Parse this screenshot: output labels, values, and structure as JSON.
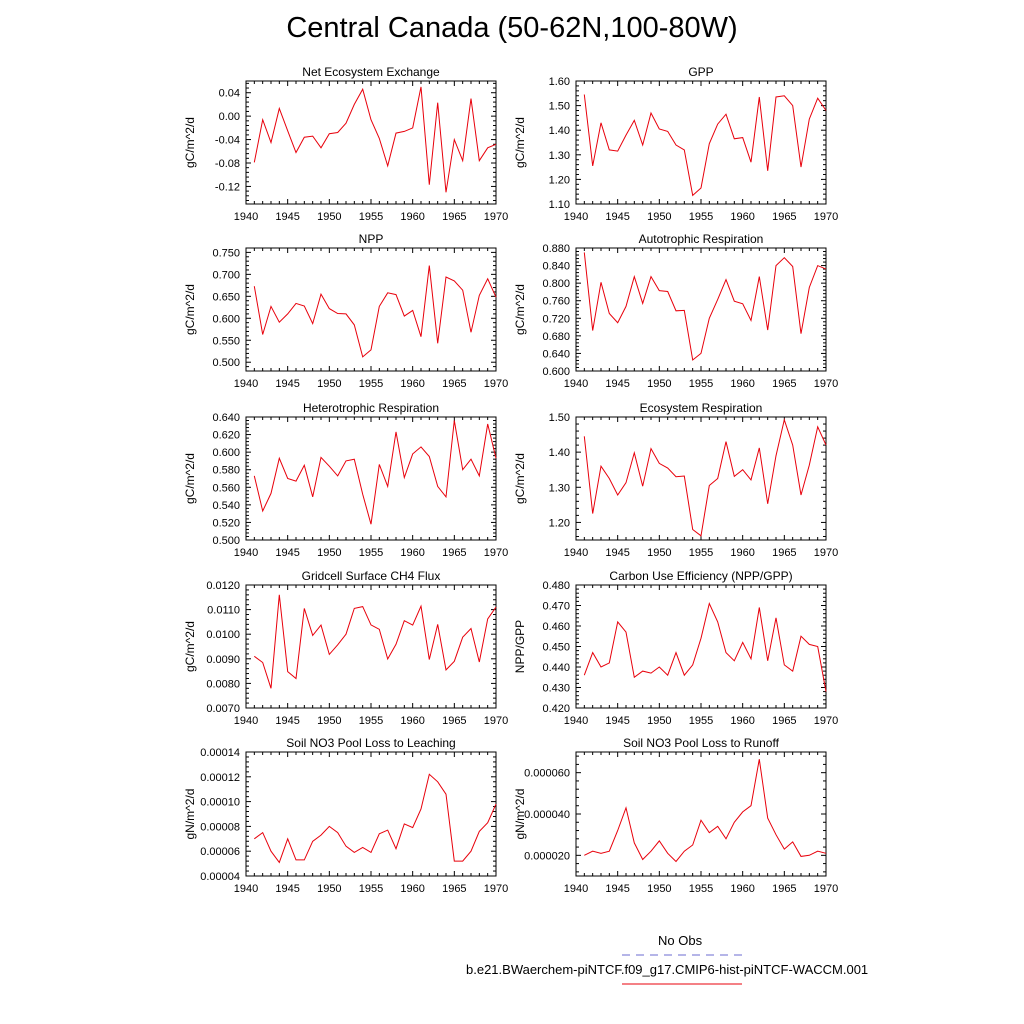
{
  "title": "Central Canada (50-62N,100-80W)",
  "legend": {
    "obs_label": "No Obs",
    "obs_color": "#6b6bd0",
    "model_label": "b.e21.BWaerchem-piNTCF.f09_g17.CMIP6-hist-piNTCF-WACCM.001",
    "model_color": "#e8000b"
  },
  "chart_data": [
    {
      "type": "line",
      "title": "Net Ecosystem Exchange",
      "ylabel": "gC/m^2/d",
      "xlim": [
        1940,
        1970
      ],
      "ylim": [
        -0.15,
        0.06
      ],
      "xticks": [
        1940,
        1945,
        1950,
        1955,
        1960,
        1965,
        1970
      ],
      "yticks": [
        0.04,
        0.0,
        -0.04,
        -0.08,
        -0.12
      ],
      "ytick_labels": [
        "0.04",
        "0.00",
        "-0.04",
        "-0.08",
        "-0.12"
      ],
      "x": [
        1941,
        1942,
        1943,
        1944,
        1945,
        1946,
        1947,
        1948,
        1949,
        1950,
        1951,
        1952,
        1953,
        1954,
        1955,
        1956,
        1957,
        1958,
        1959,
        1960,
        1961,
        1962,
        1963,
        1964,
        1965,
        1966,
        1967,
        1968,
        1969,
        1970
      ],
      "series": [
        {
          "values": [
            -0.079,
            -0.006,
            -0.045,
            0.013,
            -0.025,
            -0.062,
            -0.036,
            -0.034,
            -0.054,
            -0.03,
            -0.028,
            -0.012,
            0.02,
            0.046,
            -0.006,
            -0.038,
            -0.085,
            -0.029,
            -0.026,
            -0.02,
            0.05,
            -0.117,
            0.023,
            -0.13,
            -0.04,
            -0.076,
            0.03,
            -0.076,
            -0.054,
            -0.048
          ],
          "color": "#e8000b"
        }
      ]
    },
    {
      "type": "line",
      "title": "GPP",
      "ylabel": "gC/m^2/d",
      "xlim": [
        1940,
        1970
      ],
      "ylim": [
        1.1,
        1.6
      ],
      "xticks": [
        1940,
        1945,
        1950,
        1955,
        1960,
        1965,
        1970
      ],
      "yticks": [
        1.1,
        1.2,
        1.3,
        1.4,
        1.5,
        1.6
      ],
      "ytick_labels": [
        "1.10",
        "1.20",
        "1.30",
        "1.40",
        "1.50",
        "1.60"
      ],
      "x": [
        1941,
        1942,
        1943,
        1944,
        1945,
        1946,
        1947,
        1948,
        1949,
        1950,
        1951,
        1952,
        1953,
        1954,
        1955,
        1956,
        1957,
        1958,
        1959,
        1960,
        1961,
        1962,
        1963,
        1964,
        1965,
        1966,
        1967,
        1968,
        1969,
        1970
      ],
      "series": [
        {
          "values": [
            1.545,
            1.255,
            1.43,
            1.32,
            1.315,
            1.38,
            1.44,
            1.34,
            1.47,
            1.405,
            1.395,
            1.34,
            1.32,
            1.135,
            1.165,
            1.345,
            1.425,
            1.465,
            1.365,
            1.37,
            1.27,
            1.535,
            1.235,
            1.535,
            1.54,
            1.5,
            1.25,
            1.445,
            1.53,
            1.48
          ],
          "color": "#e8000b"
        }
      ]
    },
    {
      "type": "line",
      "title": "NPP",
      "ylabel": "gC/m^2/d",
      "xlim": [
        1940,
        1970
      ],
      "ylim": [
        0.48,
        0.76
      ],
      "xticks": [
        1940,
        1945,
        1950,
        1955,
        1960,
        1965,
        1970
      ],
      "yticks": [
        0.5,
        0.55,
        0.6,
        0.65,
        0.7,
        0.75
      ],
      "ytick_labels": [
        "0.500",
        "0.550",
        "0.600",
        "0.650",
        "0.700",
        "0.750"
      ],
      "x": [
        1941,
        1942,
        1943,
        1944,
        1945,
        1946,
        1947,
        1948,
        1949,
        1950,
        1951,
        1952,
        1953,
        1954,
        1955,
        1956,
        1957,
        1958,
        1959,
        1960,
        1961,
        1962,
        1963,
        1964,
        1965,
        1966,
        1967,
        1968,
        1969,
        1970
      ],
      "series": [
        {
          "values": [
            0.673,
            0.563,
            0.627,
            0.591,
            0.61,
            0.634,
            0.628,
            0.588,
            0.655,
            0.622,
            0.611,
            0.61,
            0.585,
            0.512,
            0.528,
            0.627,
            0.658,
            0.654,
            0.605,
            0.618,
            0.558,
            0.72,
            0.543,
            0.694,
            0.685,
            0.664,
            0.568,
            0.652,
            0.69,
            0.648
          ],
          "color": "#e8000b"
        }
      ]
    },
    {
      "type": "line",
      "title": "Autotrophic Respiration",
      "ylabel": "gC/m^2/d",
      "xlim": [
        1940,
        1970
      ],
      "ylim": [
        0.6,
        0.88
      ],
      "xticks": [
        1940,
        1945,
        1950,
        1955,
        1960,
        1965,
        1970
      ],
      "yticks": [
        0.6,
        0.64,
        0.68,
        0.72,
        0.76,
        0.8,
        0.84,
        0.88
      ],
      "ytick_labels": [
        "0.600",
        "0.640",
        "0.680",
        "0.720",
        "0.760",
        "0.800",
        "0.840",
        "0.880"
      ],
      "x": [
        1941,
        1942,
        1943,
        1944,
        1945,
        1946,
        1947,
        1948,
        1949,
        1950,
        1951,
        1952,
        1953,
        1954,
        1955,
        1956,
        1957,
        1958,
        1959,
        1960,
        1961,
        1962,
        1963,
        1964,
        1965,
        1966,
        1967,
        1968,
        1969,
        1970
      ],
      "series": [
        {
          "values": [
            0.87,
            0.692,
            0.802,
            0.731,
            0.71,
            0.747,
            0.815,
            0.754,
            0.815,
            0.783,
            0.781,
            0.737,
            0.738,
            0.625,
            0.64,
            0.72,
            0.763,
            0.808,
            0.759,
            0.753,
            0.715,
            0.815,
            0.693,
            0.84,
            0.858,
            0.838,
            0.685,
            0.79,
            0.84,
            0.832
          ],
          "color": "#e8000b"
        }
      ]
    },
    {
      "type": "line",
      "title": "Heterotrophic Respiration",
      "ylabel": "gC/m^2/d",
      "xlim": [
        1940,
        1970
      ],
      "ylim": [
        0.5,
        0.64
      ],
      "xticks": [
        1940,
        1945,
        1950,
        1955,
        1960,
        1965,
        1970
      ],
      "yticks": [
        0.5,
        0.52,
        0.54,
        0.56,
        0.58,
        0.6,
        0.62,
        0.64
      ],
      "ytick_labels": [
        "0.500",
        "0.520",
        "0.540",
        "0.560",
        "0.580",
        "0.600",
        "0.620",
        "0.640"
      ],
      "x": [
        1941,
        1942,
        1943,
        1944,
        1945,
        1946,
        1947,
        1948,
        1949,
        1950,
        1951,
        1952,
        1953,
        1954,
        1955,
        1956,
        1957,
        1958,
        1959,
        1960,
        1961,
        1962,
        1963,
        1964,
        1965,
        1966,
        1967,
        1968,
        1969,
        1970
      ],
      "series": [
        {
          "values": [
            0.573,
            0.533,
            0.553,
            0.593,
            0.57,
            0.567,
            0.585,
            0.549,
            0.594,
            0.584,
            0.573,
            0.59,
            0.592,
            0.552,
            0.518,
            0.586,
            0.561,
            0.623,
            0.571,
            0.598,
            0.606,
            0.595,
            0.561,
            0.549,
            0.636,
            0.58,
            0.592,
            0.573,
            0.632,
            0.593
          ],
          "color": "#e8000b"
        }
      ]
    },
    {
      "type": "line",
      "title": "Ecosystem Respiration",
      "ylabel": "gC/m^2/d",
      "xlim": [
        1940,
        1970
      ],
      "ylim": [
        1.15,
        1.5
      ],
      "xticks": [
        1940,
        1945,
        1950,
        1955,
        1960,
        1965,
        1970
      ],
      "yticks": [
        1.2,
        1.3,
        1.4,
        1.5
      ],
      "ytick_labels": [
        "1.20",
        "1.30",
        "1.40",
        "1.50"
      ],
      "x": [
        1941,
        1942,
        1943,
        1944,
        1945,
        1946,
        1947,
        1948,
        1949,
        1950,
        1951,
        1952,
        1953,
        1954,
        1955,
        1956,
        1957,
        1958,
        1959,
        1960,
        1961,
        1962,
        1963,
        1964,
        1965,
        1966,
        1967,
        1968,
        1969,
        1970
      ],
      "series": [
        {
          "values": [
            1.445,
            1.225,
            1.36,
            1.325,
            1.278,
            1.313,
            1.398,
            1.303,
            1.41,
            1.368,
            1.355,
            1.33,
            1.332,
            1.18,
            1.162,
            1.305,
            1.325,
            1.43,
            1.331,
            1.35,
            1.321,
            1.412,
            1.253,
            1.39,
            1.492,
            1.42,
            1.278,
            1.363,
            1.472,
            1.42
          ],
          "color": "#e8000b"
        }
      ]
    },
    {
      "type": "line",
      "title": "Gridcell Surface CH4 Flux",
      "ylabel": "gC/m^2/d",
      "xlim": [
        1940,
        1970
      ],
      "ylim": [
        0.007,
        0.012
      ],
      "xticks": [
        1940,
        1945,
        1950,
        1955,
        1960,
        1965,
        1970
      ],
      "yticks": [
        0.007,
        0.008,
        0.009,
        0.01,
        0.011,
        0.012
      ],
      "ytick_labels": [
        "0.0070",
        "0.0080",
        "0.0090",
        "0.0100",
        "0.0110",
        "0.0120"
      ],
      "x": [
        1941,
        1942,
        1943,
        1944,
        1945,
        1946,
        1947,
        1948,
        1949,
        1950,
        1951,
        1952,
        1953,
        1954,
        1955,
        1956,
        1957,
        1958,
        1959,
        1960,
        1961,
        1962,
        1963,
        1964,
        1965,
        1966,
        1967,
        1968,
        1969,
        1970
      ],
      "series": [
        {
          "values": [
            0.0091,
            0.00885,
            0.0078,
            0.0116,
            0.00848,
            0.0082,
            0.01105,
            0.00995,
            0.01037,
            0.00918,
            0.00957,
            0.01,
            0.01105,
            0.01112,
            0.01038,
            0.0102,
            0.00899,
            0.00959,
            0.01055,
            0.01037,
            0.01114,
            0.00897,
            0.0104,
            0.00855,
            0.0089,
            0.00988,
            0.01023,
            0.00887,
            0.01062,
            0.0111
          ],
          "color": "#e8000b"
        }
      ]
    },
    {
      "type": "line",
      "title": "Carbon Use Efficiency (NPP/GPP)",
      "ylabel": "NPP/GPP",
      "xlim": [
        1940,
        1970
      ],
      "ylim": [
        0.42,
        0.48
      ],
      "xticks": [
        1940,
        1945,
        1950,
        1955,
        1960,
        1965,
        1970
      ],
      "yticks": [
        0.42,
        0.43,
        0.44,
        0.45,
        0.46,
        0.47,
        0.48
      ],
      "ytick_labels": [
        "0.420",
        "0.430",
        "0.440",
        "0.450",
        "0.460",
        "0.470",
        "0.480"
      ],
      "x": [
        1941,
        1942,
        1943,
        1944,
        1945,
        1946,
        1947,
        1948,
        1949,
        1950,
        1951,
        1952,
        1953,
        1954,
        1955,
        1956,
        1957,
        1958,
        1959,
        1960,
        1961,
        1962,
        1963,
        1964,
        1965,
        1966,
        1967,
        1968,
        1969,
        1970
      ],
      "series": [
        {
          "values": [
            0.436,
            0.447,
            0.44,
            0.442,
            0.462,
            0.457,
            0.435,
            0.438,
            0.437,
            0.44,
            0.436,
            0.447,
            0.436,
            0.441,
            0.454,
            0.471,
            0.462,
            0.447,
            0.443,
            0.452,
            0.444,
            0.469,
            0.443,
            0.464,
            0.441,
            0.438,
            0.455,
            0.451,
            0.45,
            0.428
          ],
          "color": "#e8000b"
        }
      ]
    },
    {
      "type": "line",
      "title": "Soil NO3 Pool Loss to Leaching",
      "ylabel": "gN/m^2/d",
      "xlim": [
        1940,
        1970
      ],
      "ylim": [
        4e-05,
        0.00014
      ],
      "xticks": [
        1940,
        1945,
        1950,
        1955,
        1960,
        1965,
        1970
      ],
      "yticks": [
        4e-05,
        6e-05,
        8e-05,
        0.0001,
        0.00012,
        0.00014
      ],
      "ytick_labels": [
        "0.00004",
        "0.00006",
        "0.00008",
        "0.00010",
        "0.00012",
        "0.00014"
      ],
      "x": [
        1941,
        1942,
        1943,
        1944,
        1945,
        1946,
        1947,
        1948,
        1949,
        1950,
        1951,
        1952,
        1953,
        1954,
        1955,
        1956,
        1957,
        1958,
        1959,
        1960,
        1961,
        1962,
        1963,
        1964,
        1965,
        1966,
        1967,
        1968,
        1969,
        1970
      ],
      "series": [
        {
          "values": [
            7e-05,
            7.5e-05,
            6e-05,
            5.1e-05,
            7e-05,
            5.3e-05,
            5.3e-05,
            6.8e-05,
            7.3e-05,
            8e-05,
            7.5e-05,
            6.4e-05,
            5.9e-05,
            6.3e-05,
            5.9e-05,
            7.4e-05,
            7.7e-05,
            6.2e-05,
            8.2e-05,
            7.9e-05,
            9.4e-05,
            0.000122,
            0.000116,
            0.000106,
            5.2e-05,
            5.2e-05,
            6e-05,
            7.6e-05,
            8.3e-05,
            9.8e-05
          ],
          "color": "#e8000b"
        }
      ]
    },
    {
      "type": "line",
      "title": "Soil NO3 Pool Loss to Runoff",
      "ylabel": "gN/m^2/d",
      "xlim": [
        1940,
        1970
      ],
      "ylim": [
        1e-05,
        7e-05
      ],
      "xticks": [
        1940,
        1945,
        1950,
        1955,
        1960,
        1965,
        1970
      ],
      "yticks": [
        2e-05,
        4e-05,
        6e-05
      ],
      "ytick_labels": [
        "0.000020",
        "0.000040",
        "0.000060"
      ],
      "x": [
        1941,
        1942,
        1943,
        1944,
        1945,
        1946,
        1947,
        1948,
        1949,
        1950,
        1951,
        1952,
        1953,
        1954,
        1955,
        1956,
        1957,
        1958,
        1959,
        1960,
        1961,
        1962,
        1963,
        1964,
        1965,
        1966,
        1967,
        1968,
        1969,
        1970
      ],
      "series": [
        {
          "values": [
            2e-05,
            2.2e-05,
            2.1e-05,
            2.2e-05,
            3.2e-05,
            4.3e-05,
            2.6e-05,
            1.8e-05,
            2.2e-05,
            2.7e-05,
            2.1e-05,
            1.7e-05,
            2.2e-05,
            2.5e-05,
            3.7e-05,
            3.1e-05,
            3.4e-05,
            2.8e-05,
            3.6e-05,
            4.1e-05,
            4.4e-05,
            6.65e-05,
            3.8e-05,
            3e-05,
            2.3e-05,
            2.65e-05,
            1.95e-05,
            2e-05,
            2.2e-05,
            2.1e-05
          ],
          "color": "#e8000b"
        }
      ]
    }
  ]
}
